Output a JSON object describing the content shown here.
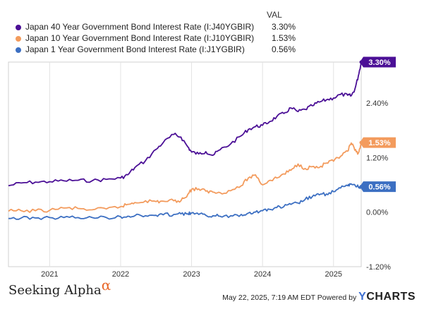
{
  "legend": {
    "value_header": "VAL",
    "items": [
      {
        "label": "Japan 40 Year Government Bond Interest Rate (I:J40YGBIR)",
        "value": "3.30%",
        "color": "#4b0f96"
      },
      {
        "label": "Japan 10 Year Government Bond Interest Rate (I:J10YGBIR)",
        "value": "1.53%",
        "color": "#f39b5d"
      },
      {
        "label": "Japan 1 Year Government Bond Interest Rate (I:J1YGBIR)",
        "value": "0.56%",
        "color": "#3c6fc2"
      }
    ]
  },
  "footer": {
    "brand": "Seeking Alpha",
    "brand_mark": "α",
    "timestamp": "May 22, 2025, 7:19 AM EDT  Powered by",
    "ycharts_y": "Y",
    "ycharts_rest": "CHARTS"
  },
  "chart_data": {
    "type": "line",
    "x_unit": "year",
    "x_range": [
      2020.42,
      2025.39
    ],
    "ylim": [
      -1.2,
      3.3
    ],
    "x_ticks": [
      {
        "x": 2021,
        "label": "2021"
      },
      {
        "x": 2022,
        "label": "2022"
      },
      {
        "x": 2023,
        "label": "2023"
      },
      {
        "x": 2024,
        "label": "2024"
      },
      {
        "x": 2025,
        "label": "2025"
      }
    ],
    "y_ticks": [
      {
        "y": 2.4,
        "label": "2.40%"
      },
      {
        "y": 1.2,
        "label": "1.20%"
      },
      {
        "y": 0.0,
        "label": "0.00%"
      },
      {
        "y": -1.2,
        "label": "-1.20%"
      }
    ],
    "grid": "vertical",
    "series": [
      {
        "name": "Japan 40 Year Government Bond Interest Rate (I:J40YGBIR)",
        "color": "#4b0f96",
        "last_label": "3.30%",
        "x": [
          2020.42,
          2020.6,
          2020.8,
          2021.0,
          2021.2,
          2021.4,
          2021.6,
          2021.8,
          2022.0,
          2022.1,
          2022.2,
          2022.35,
          2022.5,
          2022.6,
          2022.75,
          2022.85,
          2022.95,
          2023.0,
          2023.1,
          2023.2,
          2023.3,
          2023.4,
          2023.55,
          2023.7,
          2023.8,
          2023.9,
          2024.0,
          2024.1,
          2024.2,
          2024.3,
          2024.4,
          2024.5,
          2024.6,
          2024.7,
          2024.8,
          2024.9,
          2025.0,
          2025.1,
          2025.2,
          2025.25,
          2025.3,
          2025.35,
          2025.39
        ],
        "y": [
          0.58,
          0.64,
          0.66,
          0.67,
          0.69,
          0.7,
          0.69,
          0.72,
          0.75,
          0.82,
          0.98,
          1.13,
          1.38,
          1.53,
          1.71,
          1.65,
          1.43,
          1.32,
          1.28,
          1.33,
          1.25,
          1.37,
          1.5,
          1.68,
          1.82,
          1.88,
          1.91,
          1.99,
          2.1,
          2.17,
          2.29,
          2.21,
          2.26,
          2.34,
          2.42,
          2.47,
          2.51,
          2.59,
          2.57,
          2.56,
          2.7,
          3.0,
          3.3
        ]
      },
      {
        "name": "Japan 10 Year Government Bond Interest Rate (I:J10YGBIR)",
        "color": "#f39b5d",
        "last_label": "1.53%",
        "x": [
          2020.42,
          2020.6,
          2020.8,
          2021.0,
          2021.2,
          2021.4,
          2021.6,
          2021.8,
          2022.0,
          2022.1,
          2022.2,
          2022.35,
          2022.5,
          2022.6,
          2022.75,
          2022.85,
          2022.95,
          2023.0,
          2023.1,
          2023.2,
          2023.3,
          2023.4,
          2023.55,
          2023.7,
          2023.8,
          2023.9,
          2024.0,
          2024.1,
          2024.2,
          2024.3,
          2024.4,
          2024.5,
          2024.6,
          2024.7,
          2024.8,
          2024.9,
          2025.0,
          2025.1,
          2025.2,
          2025.25,
          2025.3,
          2025.35,
          2025.39
        ],
        "y": [
          0.02,
          0.03,
          0.03,
          0.04,
          0.09,
          0.08,
          0.05,
          0.07,
          0.12,
          0.17,
          0.21,
          0.25,
          0.23,
          0.24,
          0.25,
          0.25,
          0.4,
          0.5,
          0.51,
          0.46,
          0.44,
          0.43,
          0.47,
          0.58,
          0.75,
          0.82,
          0.6,
          0.7,
          0.75,
          0.84,
          0.92,
          1.06,
          0.96,
          1.0,
          0.98,
          1.08,
          1.12,
          1.23,
          1.34,
          1.52,
          1.36,
          1.3,
          1.53
        ]
      },
      {
        "name": "Japan 1 Year Government Bond Interest Rate (I:J1YGBIR)",
        "color": "#3c6fc2",
        "last_label": "0.56%",
        "x": [
          2020.42,
          2020.6,
          2020.8,
          2021.0,
          2021.2,
          2021.4,
          2021.6,
          2021.8,
          2022.0,
          2022.1,
          2022.2,
          2022.35,
          2022.5,
          2022.6,
          2022.75,
          2022.85,
          2022.95,
          2023.0,
          2023.1,
          2023.2,
          2023.3,
          2023.4,
          2023.55,
          2023.7,
          2023.8,
          2023.9,
          2024.0,
          2024.1,
          2024.2,
          2024.3,
          2024.4,
          2024.5,
          2024.6,
          2024.7,
          2024.8,
          2024.9,
          2025.0,
          2025.1,
          2025.2,
          2025.25,
          2025.3,
          2025.35,
          2025.39
        ],
        "y": [
          -0.14,
          -0.13,
          -0.13,
          -0.12,
          -0.12,
          -0.12,
          -0.12,
          -0.12,
          -0.1,
          -0.09,
          -0.08,
          -0.08,
          -0.07,
          -0.06,
          -0.05,
          -0.04,
          -0.04,
          -0.02,
          -0.05,
          -0.07,
          -0.08,
          -0.09,
          -0.08,
          -0.05,
          -0.02,
          0.0,
          0.03,
          0.06,
          0.1,
          0.12,
          0.17,
          0.2,
          0.28,
          0.34,
          0.38,
          0.4,
          0.45,
          0.53,
          0.58,
          0.62,
          0.6,
          0.55,
          0.56
        ]
      }
    ]
  }
}
